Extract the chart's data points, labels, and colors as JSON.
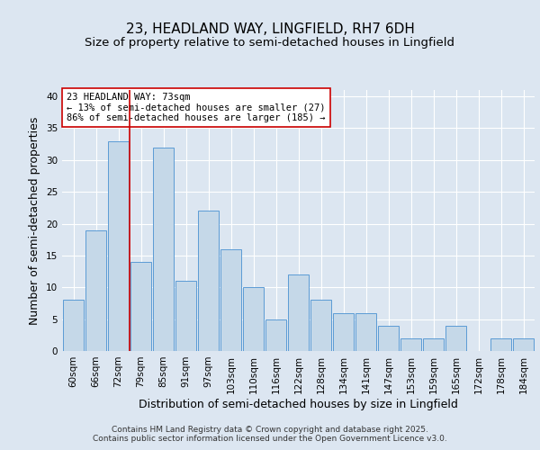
{
  "title_line1": "23, HEADLAND WAY, LINGFIELD, RH7 6DH",
  "title_line2": "Size of property relative to semi-detached houses in Lingfield",
  "xlabel": "Distribution of semi-detached houses by size in Lingfield",
  "ylabel": "Number of semi-detached properties",
  "categories": [
    "60sqm",
    "66sqm",
    "72sqm",
    "79sqm",
    "85sqm",
    "91sqm",
    "97sqm",
    "103sqm",
    "110sqm",
    "116sqm",
    "122sqm",
    "128sqm",
    "134sqm",
    "141sqm",
    "147sqm",
    "153sqm",
    "159sqm",
    "165sqm",
    "172sqm",
    "178sqm",
    "184sqm"
  ],
  "values": [
    8,
    19,
    33,
    14,
    32,
    11,
    22,
    16,
    10,
    5,
    12,
    8,
    6,
    6,
    4,
    2,
    2,
    4,
    0,
    2,
    2
  ],
  "bar_color": "#c5d8e8",
  "bar_edge_color": "#5b9bd5",
  "highlight_bar_index": 2,
  "highlight_line_color": "#cc0000",
  "annotation_line1": "23 HEADLAND WAY: 73sqm",
  "annotation_line2": "← 13% of semi-detached houses are smaller (27)",
  "annotation_line3": "86% of semi-detached houses are larger (185) →",
  "annotation_box_color": "#ffffff",
  "annotation_box_edge_color": "#cc0000",
  "ylim": [
    0,
    41
  ],
  "yticks": [
    0,
    5,
    10,
    15,
    20,
    25,
    30,
    35,
    40
  ],
  "background_color": "#dce6f1",
  "plot_background_color": "#dce6f1",
  "grid_color": "#ffffff",
  "footer_text": "Contains HM Land Registry data © Crown copyright and database right 2025.\nContains public sector information licensed under the Open Government Licence v3.0.",
  "title_fontsize": 11,
  "subtitle_fontsize": 9.5,
  "axis_label_fontsize": 9,
  "tick_fontsize": 7.5,
  "annotation_fontsize": 7.5,
  "footer_fontsize": 6.5
}
